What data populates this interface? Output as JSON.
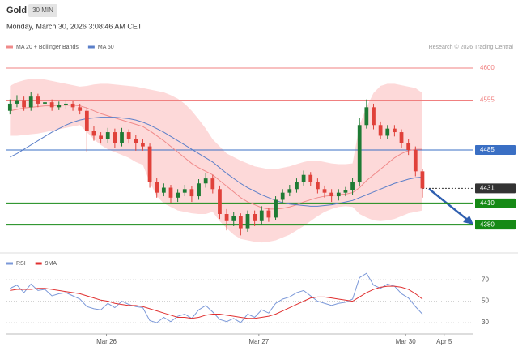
{
  "header": {
    "title": "Gold",
    "interval": "30 MIN",
    "timestamp": "Monday, March 30, 2026 3:08:46 AM CET",
    "credit": "Research © 2026 Trading Central"
  },
  "chart_data": [
    {
      "type": "candlestick",
      "ylim": [
        4354,
        4616
      ],
      "up_color": "#1e7b34",
      "down_color": "#e0413a",
      "open": [
        4540,
        4550,
        4555,
        4545,
        4560,
        4550,
        4552,
        4545,
        4548,
        4550,
        4545,
        4540,
        4512,
        4505,
        4500,
        4510,
        4495,
        4510,
        4500,
        4495,
        4490,
        4440,
        4425,
        4432,
        4418,
        4425,
        4430,
        4420,
        4438,
        4445,
        4430,
        4395,
        4385,
        4392,
        4375,
        4395,
        4385,
        4400,
        4390,
        4415,
        4425,
        4430,
        4440,
        4450,
        4440,
        4430,
        4425,
        4420,
        4425,
        4428,
        4440,
        4520,
        4545,
        4520,
        4505,
        4515,
        4510,
        4495,
        4485,
        4455
      ],
      "high": [
        4556,
        4562,
        4560,
        4566,
        4564,
        4558,
        4556,
        4553,
        4555,
        4554,
        4550,
        4545,
        4518,
        4510,
        4516,
        4515,
        4516,
        4514,
        4506,
        4500,
        4494,
        4446,
        4438,
        4436,
        4430,
        4436,
        4434,
        4444,
        4452,
        4450,
        4435,
        4402,
        4398,
        4396,
        4400,
        4400,
        4406,
        4404,
        4420,
        4430,
        4436,
        4445,
        4456,
        4454,
        4445,
        4435,
        4430,
        4430,
        4433,
        4446,
        4530,
        4556,
        4550,
        4525,
        4520,
        4520,
        4514,
        4500,
        4490,
        4458
      ],
      "low": [
        4535,
        4545,
        4540,
        4540,
        4545,
        4545,
        4540,
        4541,
        4543,
        4540,
        4535,
        4482,
        4498,
        4494,
        4495,
        4488,
        4490,
        4494,
        4484,
        4484,
        4432,
        4418,
        4420,
        4410,
        4412,
        4420,
        4412,
        4415,
        4432,
        4424,
        4388,
        4372,
        4378,
        4365,
        4370,
        4378,
        4380,
        4384,
        4386,
        4410,
        4420,
        4425,
        4435,
        4434,
        4424,
        4418,
        4412,
        4414,
        4420,
        4422,
        4434,
        4515,
        4514,
        4500,
        4500,
        4504,
        4488,
        4478,
        4448,
        4418
      ],
      "close": [
        4550,
        4555,
        4545,
        4560,
        4550,
        4552,
        4545,
        4548,
        4550,
        4545,
        4540,
        4512,
        4505,
        4500,
        4510,
        4495,
        4510,
        4500,
        4495,
        4490,
        4440,
        4425,
        4432,
        4418,
        4425,
        4430,
        4420,
        4438,
        4445,
        4430,
        4395,
        4385,
        4392,
        4375,
        4395,
        4385,
        4400,
        4390,
        4415,
        4425,
        4430,
        4440,
        4450,
        4440,
        4430,
        4425,
        4420,
        4425,
        4428,
        4440,
        4520,
        4545,
        4520,
        4505,
        4515,
        4510,
        4495,
        4485,
        4455,
        4431
      ],
      "series": [
        {
          "name": "MA 20 + Bollinger Bands",
          "color": "#f08a8a",
          "band_color": "#fdd9d9",
          "values": [
            4540,
            4542,
            4544,
            4545,
            4546,
            4547,
            4547,
            4548,
            4548,
            4548,
            4547,
            4544,
            4540,
            4536,
            4533,
            4530,
            4527,
            4524,
            4521,
            4518,
            4512,
            4505,
            4498,
            4490,
            4482,
            4474,
            4466,
            4460,
            4455,
            4450,
            4442,
            4434,
            4426,
            4418,
            4412,
            4408,
            4404,
            4402,
            4402,
            4403,
            4405,
            4408,
            4412,
            4415,
            4418,
            4420,
            4421,
            4422,
            4423,
            4425,
            4432,
            4442,
            4450,
            4458,
            4466,
            4474,
            4480,
            4484,
            4486,
            4486
          ],
          "upper": [
            4575,
            4580,
            4583,
            4585,
            4585,
            4584,
            4582,
            4580,
            4578,
            4576,
            4574,
            4575,
            4577,
            4578,
            4578,
            4577,
            4576,
            4575,
            4574,
            4572,
            4570,
            4568,
            4566,
            4562,
            4557,
            4550,
            4540,
            4528,
            4515,
            4500,
            4490,
            4480,
            4475,
            4470,
            4466,
            4462,
            4460,
            4458,
            4458,
            4460,
            4462,
            4465,
            4468,
            4470,
            4470,
            4468,
            4466,
            4465,
            4465,
            4466,
            4520,
            4545,
            4565,
            4575,
            4578,
            4578,
            4576,
            4574,
            4572,
            4565
          ],
          "lower": [
            4505,
            4505,
            4506,
            4507,
            4508,
            4510,
            4512,
            4514,
            4516,
            4518,
            4520,
            4510,
            4500,
            4492,
            4486,
            4482,
            4478,
            4474,
            4468,
            4464,
            4440,
            4420,
            4410,
            4405,
            4400,
            4398,
            4396,
            4395,
            4395,
            4398,
            4385,
            4375,
            4366,
            4360,
            4358,
            4356,
            4355,
            4356,
            4358,
            4362,
            4366,
            4372,
            4378,
            4385,
            4392,
            4398,
            4402,
            4405,
            4406,
            4405,
            4395,
            4390,
            4386,
            4385,
            4386,
            4388,
            4392,
            4396,
            4398,
            4400
          ]
        },
        {
          "name": "MA 50",
          "color": "#5b7fc9",
          "values": [
            4475,
            4480,
            4486,
            4492,
            4498,
            4504,
            4510,
            4515,
            4520,
            4524,
            4527,
            4529,
            4530,
            4531,
            4531,
            4531,
            4530,
            4529,
            4527,
            4524,
            4520,
            4515,
            4510,
            4504,
            4498,
            4492,
            4486,
            4480,
            4474,
            4468,
            4460,
            4452,
            4445,
            4438,
            4432,
            4427,
            4422,
            4418,
            4414,
            4411,
            4409,
            4408,
            4407,
            4406,
            4406,
            4407,
            4408,
            4410,
            4412,
            4414,
            4418,
            4422,
            4426,
            4430,
            4434,
            4438,
            4441,
            4444,
            4446,
            4447
          ]
        }
      ],
      "levels": [
        {
          "value": 4600,
          "color": "#f08080",
          "width": 1,
          "box": false
        },
        {
          "value": 4555,
          "color": "#f08080",
          "width": 1,
          "box": false
        },
        {
          "value": 4485,
          "color": "#3a6fc4",
          "width": 1,
          "box": true
        },
        {
          "value": 4431,
          "color": "#333333",
          "width": 1,
          "box": true,
          "dotted": true
        },
        {
          "value": 4410,
          "color": "#168a16",
          "width": 2,
          "box": true
        },
        {
          "value": 4380,
          "color": "#168a16",
          "width": 2,
          "box": true
        }
      ]
    },
    {
      "type": "line",
      "ylim": [
        21,
        89
      ],
      "yticks": [
        30,
        50,
        70
      ],
      "grid": true,
      "xlim": [
        -0.5,
        66.3
      ],
      "xticks": [
        {
          "value": 13.8,
          "label": "Mar 26"
        },
        {
          "value": 35.6,
          "label": "Mar 27"
        },
        {
          "value": 56.6,
          "label": "Mar 30"
        },
        {
          "value": 62.1,
          "label": "Apr 5"
        }
      ],
      "series": [
        {
          "name": "RSI",
          "color": "#7b98d8",
          "values": [
            62,
            65,
            58,
            66,
            60,
            61,
            55,
            57,
            58,
            55,
            52,
            45,
            43,
            42,
            48,
            44,
            50,
            47,
            45,
            44,
            32,
            30,
            35,
            31,
            36,
            38,
            34,
            42,
            46,
            40,
            33,
            31,
            34,
            30,
            38,
            35,
            42,
            39,
            48,
            52,
            54,
            58,
            60,
            55,
            50,
            48,
            46,
            48,
            49,
            52,
            72,
            76,
            65,
            62,
            66,
            64,
            57,
            53,
            45,
            38
          ]
        },
        {
          "name": "9MA",
          "color": "#e03030",
          "values": [
            60,
            61,
            61,
            61,
            62,
            62,
            61,
            60,
            59,
            58,
            57,
            55,
            53,
            51,
            50,
            48,
            47,
            46,
            46,
            45,
            43,
            41,
            39,
            37,
            35,
            35,
            34,
            35,
            37,
            38,
            38,
            37,
            36,
            35,
            34,
            34,
            35,
            36,
            38,
            41,
            44,
            47,
            50,
            53,
            54,
            54,
            53,
            52,
            51,
            50,
            54,
            58,
            61,
            63,
            64,
            64,
            63,
            61,
            57,
            52
          ]
        }
      ]
    }
  ]
}
